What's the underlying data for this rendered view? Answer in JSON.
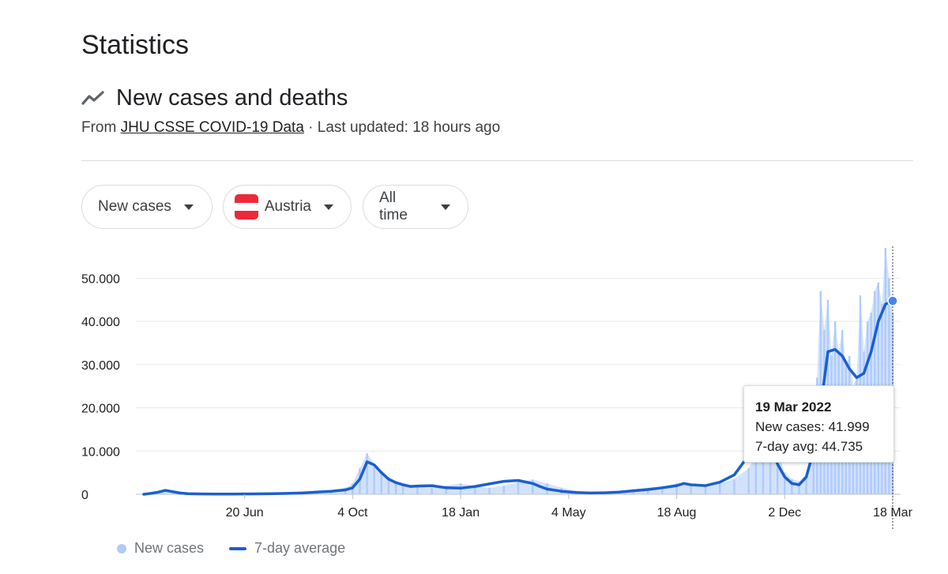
{
  "page_title": "Statistics",
  "section": {
    "title": "New cases and deaths",
    "icon": "trending-line-icon",
    "source_prefix": "From ",
    "source_link": "JHU CSSE COVID-19 Data",
    "updated": " · Last updated: 18 hours ago"
  },
  "filters": {
    "metric": "New cases",
    "country": "Austria",
    "country_flag_colors": [
      "#ed2939",
      "#ffffff",
      "#ed2939"
    ],
    "range": "All time"
  },
  "tooltip": {
    "date": "19 Mar 2022",
    "new_cases": "New cases: 41.999",
    "avg": "7-day avg: 44.735"
  },
  "legend": {
    "new_cases": "New cases",
    "avg": "7-day average"
  },
  "colors": {
    "bars": "#aecbfa",
    "avg_line": "#1a5fd1",
    "gridline": "#e8eaed"
  },
  "chart_data": {
    "type": "bar",
    "ylim": [
      0,
      57000
    ],
    "yticks": [
      0,
      10000,
      20000,
      30000,
      40000,
      50000
    ],
    "ytick_labels": [
      "0",
      "10.000",
      "20.000",
      "30.000",
      "40.000",
      "50.000"
    ],
    "xtick_labels": [
      "20 Jun",
      "4 Oct",
      "18 Jan",
      "4 May",
      "18 Aug",
      "2 Dec",
      "18 Mar"
    ],
    "xtick_weeks": [
      14,
      29,
      44,
      59,
      74,
      89,
      104
    ],
    "x_unit": "weeks since start of series",
    "series": [
      {
        "name": "New cases",
        "kind": "bar",
        "x_weeks": [
          0,
          2,
          4,
          6,
          8,
          10,
          12,
          14,
          16,
          18,
          20,
          22,
          24,
          26,
          28,
          29,
          30,
          31,
          32,
          33,
          34,
          35,
          36,
          38,
          40,
          42,
          44,
          46,
          48,
          50,
          52,
          54,
          56,
          58,
          60,
          62,
          64,
          66,
          68,
          70,
          72,
          74,
          76,
          78,
          80,
          82,
          84,
          85,
          86,
          87,
          88,
          89,
          90,
          91,
          92,
          93,
          93.5,
          94,
          94.5,
          95,
          95.5,
          96,
          96.5,
          97,
          97.5,
          98,
          98.5,
          99,
          99.5,
          100,
          100.5,
          101,
          101.5,
          102,
          102.5,
          103,
          103.5,
          104
        ],
        "values": [
          0,
          300,
          900,
          500,
          150,
          100,
          80,
          100,
          150,
          200,
          300,
          500,
          700,
          900,
          1500,
          2500,
          6000,
          9500,
          7000,
          5000,
          4000,
          2500,
          2000,
          1800,
          1500,
          2000,
          2500,
          1800,
          1500,
          2000,
          2800,
          3400,
          2500,
          1500,
          800,
          300,
          500,
          800,
          1200,
          1500,
          1800,
          2500,
          2200,
          2000,
          2500,
          3500,
          6000,
          9000,
          13000,
          15000,
          10000,
          5000,
          3500,
          3000,
          4500,
          12000,
          27000,
          47000,
          38000,
          45000,
          32000,
          40000,
          33000,
          38000,
          30000,
          32000,
          25000,
          27000,
          46000,
          33000,
          40000,
          42000,
          47000,
          49000,
          44000,
          57000,
          50000,
          41999
        ]
      },
      {
        "name": "7-day average",
        "kind": "line",
        "x_weeks": [
          0,
          1,
          2,
          3,
          4,
          5,
          6,
          8,
          10,
          12,
          14,
          16,
          18,
          20,
          22,
          24,
          26,
          28,
          29,
          30,
          31,
          32,
          33,
          34,
          35,
          36,
          37,
          38,
          40,
          42,
          44,
          46,
          48,
          50,
          52,
          54,
          55,
          56,
          58,
          60,
          62,
          64,
          66,
          68,
          70,
          72,
          74,
          75,
          76,
          78,
          80,
          82,
          84,
          85,
          86,
          87,
          88,
          89,
          90,
          91,
          92,
          93,
          94,
          95,
          96,
          97,
          98,
          99,
          100,
          101,
          102,
          103,
          104
        ],
        "values": [
          0,
          200,
          500,
          900,
          600,
          300,
          150,
          80,
          60,
          60,
          80,
          100,
          150,
          200,
          300,
          500,
          700,
          1000,
          1500,
          3500,
          7500,
          6800,
          5000,
          3500,
          2700,
          2200,
          1800,
          1900,
          2000,
          1500,
          1400,
          1800,
          2400,
          3000,
          3200,
          2500,
          1800,
          1200,
          700,
          400,
          300,
          350,
          500,
          800,
          1100,
          1500,
          2000,
          2500,
          2200,
          2000,
          2800,
          4500,
          9000,
          12000,
          13500,
          11000,
          7000,
          4000,
          2500,
          2200,
          4000,
          10000,
          20000,
          33000,
          33500,
          32000,
          29000,
          27000,
          28000,
          33000,
          40000,
          44000,
          44735
        ]
      }
    ],
    "selected_point": {
      "x_week": 104,
      "date": "19 Mar 2022",
      "new_cases": 41999,
      "avg": 44735
    },
    "grid": true,
    "legend_position": "bottom-left"
  }
}
